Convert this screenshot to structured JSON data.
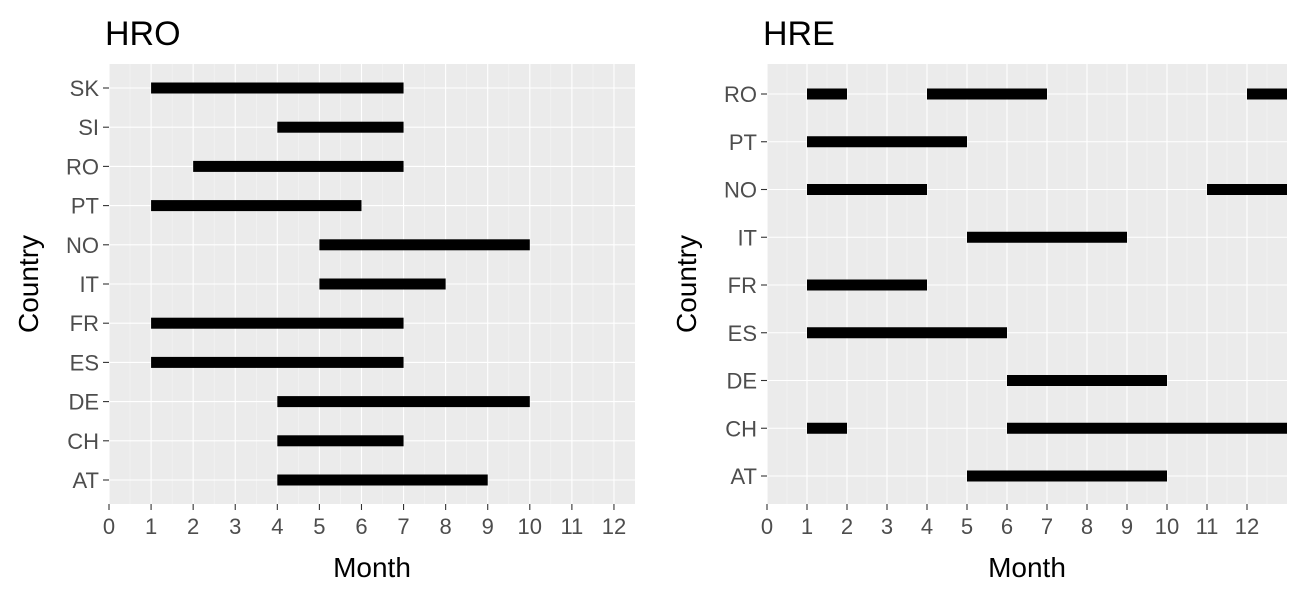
{
  "chart_data": [
    {
      "type": "bar",
      "orientation": "horizontal-ranges",
      "title": "HRO",
      "xlabel": "Month",
      "ylabel": "Country",
      "xlim": [
        0,
        12.5
      ],
      "x_ticks": [
        "0",
        "1",
        "2",
        "3",
        "4",
        "5",
        "6",
        "7",
        "8",
        "9",
        "10",
        "11",
        "12"
      ],
      "categories": [
        "SK",
        "SI",
        "RO",
        "PT",
        "NO",
        "IT",
        "FR",
        "ES",
        "DE",
        "CH",
        "AT"
      ],
      "segments": [
        {
          "country": "SK",
          "start": 1,
          "end": 7
        },
        {
          "country": "SI",
          "start": 4,
          "end": 7
        },
        {
          "country": "RO",
          "start": 2,
          "end": 7
        },
        {
          "country": "PT",
          "start": 1,
          "end": 6
        },
        {
          "country": "NO",
          "start": 5,
          "end": 10
        },
        {
          "country": "IT",
          "start": 5,
          "end": 8
        },
        {
          "country": "FR",
          "start": 1,
          "end": 7
        },
        {
          "country": "ES",
          "start": 1,
          "end": 7
        },
        {
          "country": "DE",
          "start": 4,
          "end": 10
        },
        {
          "country": "CH",
          "start": 4,
          "end": 7
        },
        {
          "country": "AT",
          "start": 4,
          "end": 9
        }
      ],
      "grid": true,
      "background": "#ebebeb",
      "bar_color": "#000000"
    },
    {
      "type": "bar",
      "orientation": "horizontal-ranges",
      "title": "HRE",
      "xlabel": "Month",
      "ylabel": "Country",
      "xlim": [
        0,
        13
      ],
      "x_ticks": [
        "0",
        "1",
        "2",
        "3",
        "4",
        "5",
        "6",
        "7",
        "8",
        "9",
        "10",
        "11",
        "12"
      ],
      "categories": [
        "RO",
        "PT",
        "NO",
        "IT",
        "FR",
        "ES",
        "DE",
        "CH",
        "AT"
      ],
      "segments": [
        {
          "country": "RO",
          "start": 1,
          "end": 2
        },
        {
          "country": "RO",
          "start": 4,
          "end": 7
        },
        {
          "country": "RO",
          "start": 12,
          "end": 13
        },
        {
          "country": "PT",
          "start": 1,
          "end": 5
        },
        {
          "country": "NO",
          "start": 1,
          "end": 4
        },
        {
          "country": "NO",
          "start": 11,
          "end": 13
        },
        {
          "country": "IT",
          "start": 5,
          "end": 9
        },
        {
          "country": "FR",
          "start": 1,
          "end": 4
        },
        {
          "country": "ES",
          "start": 1,
          "end": 6
        },
        {
          "country": "DE",
          "start": 6,
          "end": 10
        },
        {
          "country": "CH",
          "start": 1,
          "end": 2
        },
        {
          "country": "CH",
          "start": 6,
          "end": 13
        },
        {
          "country": "AT",
          "start": 5,
          "end": 10
        }
      ],
      "grid": true,
      "background": "#ebebeb",
      "bar_color": "#000000"
    }
  ]
}
